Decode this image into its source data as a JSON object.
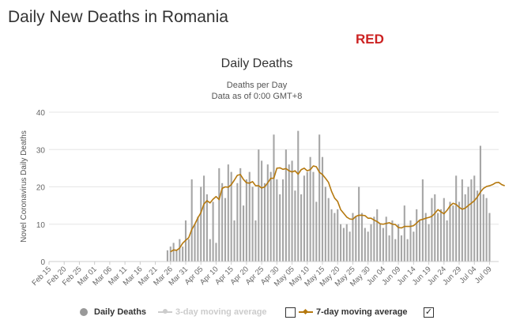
{
  "page": {
    "title": "Daily New Deaths in Romania",
    "badge": "RED",
    "badge_color": "#cc2222"
  },
  "chart_data": {
    "type": "bar",
    "title": "Daily Deaths",
    "subtitle": "Deaths per Day",
    "subtitle2": "Data as of 0:00 GMT+8",
    "ylabel": "Novel Coronavirus Daily Deaths",
    "xlabel": "",
    "ylim": [
      0,
      40
    ],
    "yticks": [
      0,
      10,
      20,
      30,
      40
    ],
    "grid": true,
    "legend_position": "bottom",
    "x_start": "2020-02-15",
    "x_end": "2020-07-12",
    "xtick_labels": [
      "Feb 15",
      "Feb 20",
      "Feb 25",
      "Mar 01",
      "Mar 06",
      "Mar 11",
      "Mar 16",
      "Mar 21",
      "Mar 26",
      "Mar 31",
      "Apr 05",
      "Apr 10",
      "Apr 15",
      "Apr 20",
      "Apr 25",
      "Apr 30",
      "May 05",
      "May 10",
      "May 15",
      "May 20",
      "May 25",
      "May 30",
      "Jun 04",
      "Jun 09",
      "Jun 14",
      "Jun 19",
      "Jun 24",
      "Jun 29",
      "Jul 04",
      "Jul 09"
    ],
    "series": [
      {
        "name": "Daily Deaths",
        "type": "bar",
        "color": "#a6a6a6",
        "values": [
          0,
          0,
          0,
          0,
          0,
          0,
          0,
          0,
          0,
          0,
          0,
          0,
          0,
          0,
          0,
          0,
          0,
          0,
          0,
          0,
          0,
          0,
          0,
          0,
          0,
          0,
          0,
          0,
          0,
          0,
          0,
          0,
          0,
          0,
          0,
          0,
          0,
          0,
          0,
          3,
          4,
          5,
          3,
          6,
          4,
          11,
          6,
          22,
          10,
          12,
          20,
          23,
          18,
          6,
          16,
          5,
          25,
          21,
          17,
          26,
          24,
          11,
          21,
          25,
          15,
          22,
          24,
          20,
          11,
          30,
          27,
          21,
          26,
          24,
          34,
          22,
          18,
          22,
          30,
          26,
          27,
          19,
          35,
          18,
          23,
          24,
          28,
          24,
          16,
          34,
          28,
          20,
          17,
          14,
          13,
          14,
          10,
          9,
          10,
          8,
          13,
          12,
          20,
          13,
          9,
          8,
          10,
          12,
          14,
          10,
          9,
          12,
          7,
          11,
          6,
          10,
          7,
          15,
          6,
          11,
          8,
          14,
          11,
          22,
          13,
          10,
          17,
          18,
          13,
          14,
          17,
          11,
          16,
          15,
          23,
          16,
          22,
          18,
          20,
          22,
          23,
          19,
          31,
          18,
          17,
          13
        ],
        "visible": true
      },
      {
        "name": "3-day moving average",
        "type": "line",
        "color": "#cccccc",
        "visible": false
      },
      {
        "name": "7-day moving average",
        "type": "line",
        "color": "#b5790f",
        "start_date": "2020-03-26",
        "values": [
          2.6,
          3.1,
          3.0,
          3.6,
          4.9,
          5.7,
          6.4,
          8.6,
          10.0,
          11.7,
          13.1,
          15.4,
          16.3,
          15.7,
          16.7,
          17.4,
          16.6,
          19.6,
          20.0,
          19.9,
          20.6,
          21.8,
          23.1,
          23.3,
          22.0,
          21.1,
          21.0,
          21.4,
          20.3,
          20.3,
          19.7,
          20.0,
          21.1,
          22.3,
          22.3,
          25.0,
          25.1,
          24.7,
          24.9,
          24.3,
          24.0,
          24.3,
          23.4,
          24.6,
          25.0,
          24.3,
          24.6,
          25.6,
          25.4,
          23.9,
          23.3,
          22.3,
          21.2,
          18.8,
          17.0,
          16.1,
          13.9,
          12.9,
          11.9,
          11.4,
          11.3,
          12.1,
          12.4,
          12.4,
          12.3,
          11.6,
          11.6,
          11.1,
          10.7,
          10.1,
          10.0,
          10.2,
          10.4,
          10.0,
          9.9,
          9.1,
          9.0,
          9.4,
          9.4,
          9.4,
          9.6,
          10.3,
          11.1,
          11.3,
          11.6,
          11.8,
          12.1,
          12.9,
          13.9,
          13.3,
          12.8,
          13.7,
          14.9,
          15.6,
          15.3,
          14.5,
          14.0,
          14.3,
          15.0,
          15.6,
          16.3,
          17.3,
          18.6,
          19.6,
          20.1,
          20.3,
          20.6,
          21.1,
          21.2,
          20.6,
          20.3
        ]
      }
    ]
  },
  "legend": {
    "items": [
      {
        "label": "Daily Deaths",
        "color": "#999999"
      },
      {
        "label": "3-day moving average",
        "color": "#cccccc"
      },
      {
        "label": "7-day moving average",
        "color": "#8c5a00"
      }
    ],
    "checkbox_checked_mark": "✓"
  }
}
